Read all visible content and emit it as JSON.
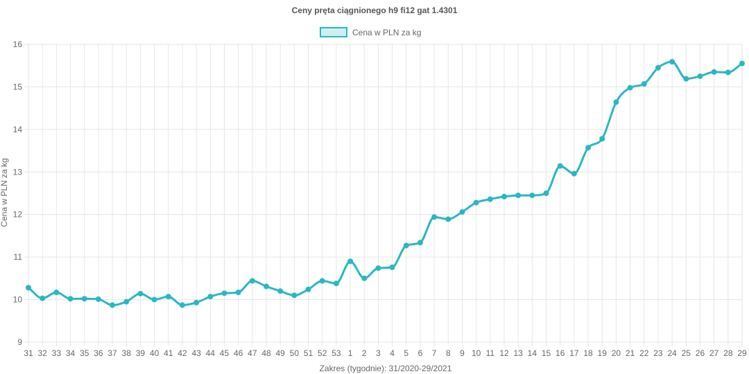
{
  "colors": {
    "line": "#2ab7c2",
    "legend_fill": "#cdeff2",
    "grid": "#e6e6e6",
    "text": "#666666"
  },
  "chart_data": {
    "type": "line",
    "title": "Ceny pręta ciągnionego h9 fi12 gat 1.4301",
    "xlabel": "Zakres (tygodnie): 31/2020-29/2021",
    "ylabel": "Cena w PLN za kg",
    "ylim": [
      9,
      16
    ],
    "yticks": [
      9,
      10,
      11,
      12,
      13,
      14,
      15,
      16
    ],
    "grid": true,
    "legend_position": "top-center",
    "categories": [
      "31",
      "32",
      "33",
      "34",
      "35",
      "36",
      "37",
      "38",
      "39",
      "40",
      "41",
      "42",
      "43",
      "44",
      "45",
      "46",
      "47",
      "48",
      "49",
      "50",
      "51",
      "52",
      "53",
      "1",
      "2",
      "3",
      "4",
      "5",
      "6",
      "7",
      "8",
      "9",
      "10",
      "11",
      "12",
      "13",
      "14",
      "15",
      "16",
      "17",
      "18",
      "19",
      "20",
      "21",
      "22",
      "23",
      "24",
      "25",
      "26",
      "27",
      "28",
      "29"
    ],
    "series": [
      {
        "name": "Cena w PLN za kg",
        "values": [
          10.28,
          10.03,
          10.17,
          10.02,
          10.02,
          10.01,
          9.87,
          9.95,
          10.14,
          10.0,
          10.07,
          9.87,
          9.93,
          10.07,
          10.15,
          10.17,
          10.44,
          10.31,
          10.2,
          10.1,
          10.24,
          10.44,
          10.38,
          10.9,
          10.5,
          10.74,
          10.76,
          11.27,
          11.34,
          11.94,
          11.89,
          12.06,
          12.28,
          12.36,
          12.42,
          12.45,
          12.45,
          12.5,
          13.14,
          12.96,
          13.57,
          13.78,
          14.64,
          14.98,
          15.07,
          15.45,
          15.59,
          15.19,
          15.25,
          15.35,
          15.34,
          15.55
        ]
      }
    ]
  }
}
